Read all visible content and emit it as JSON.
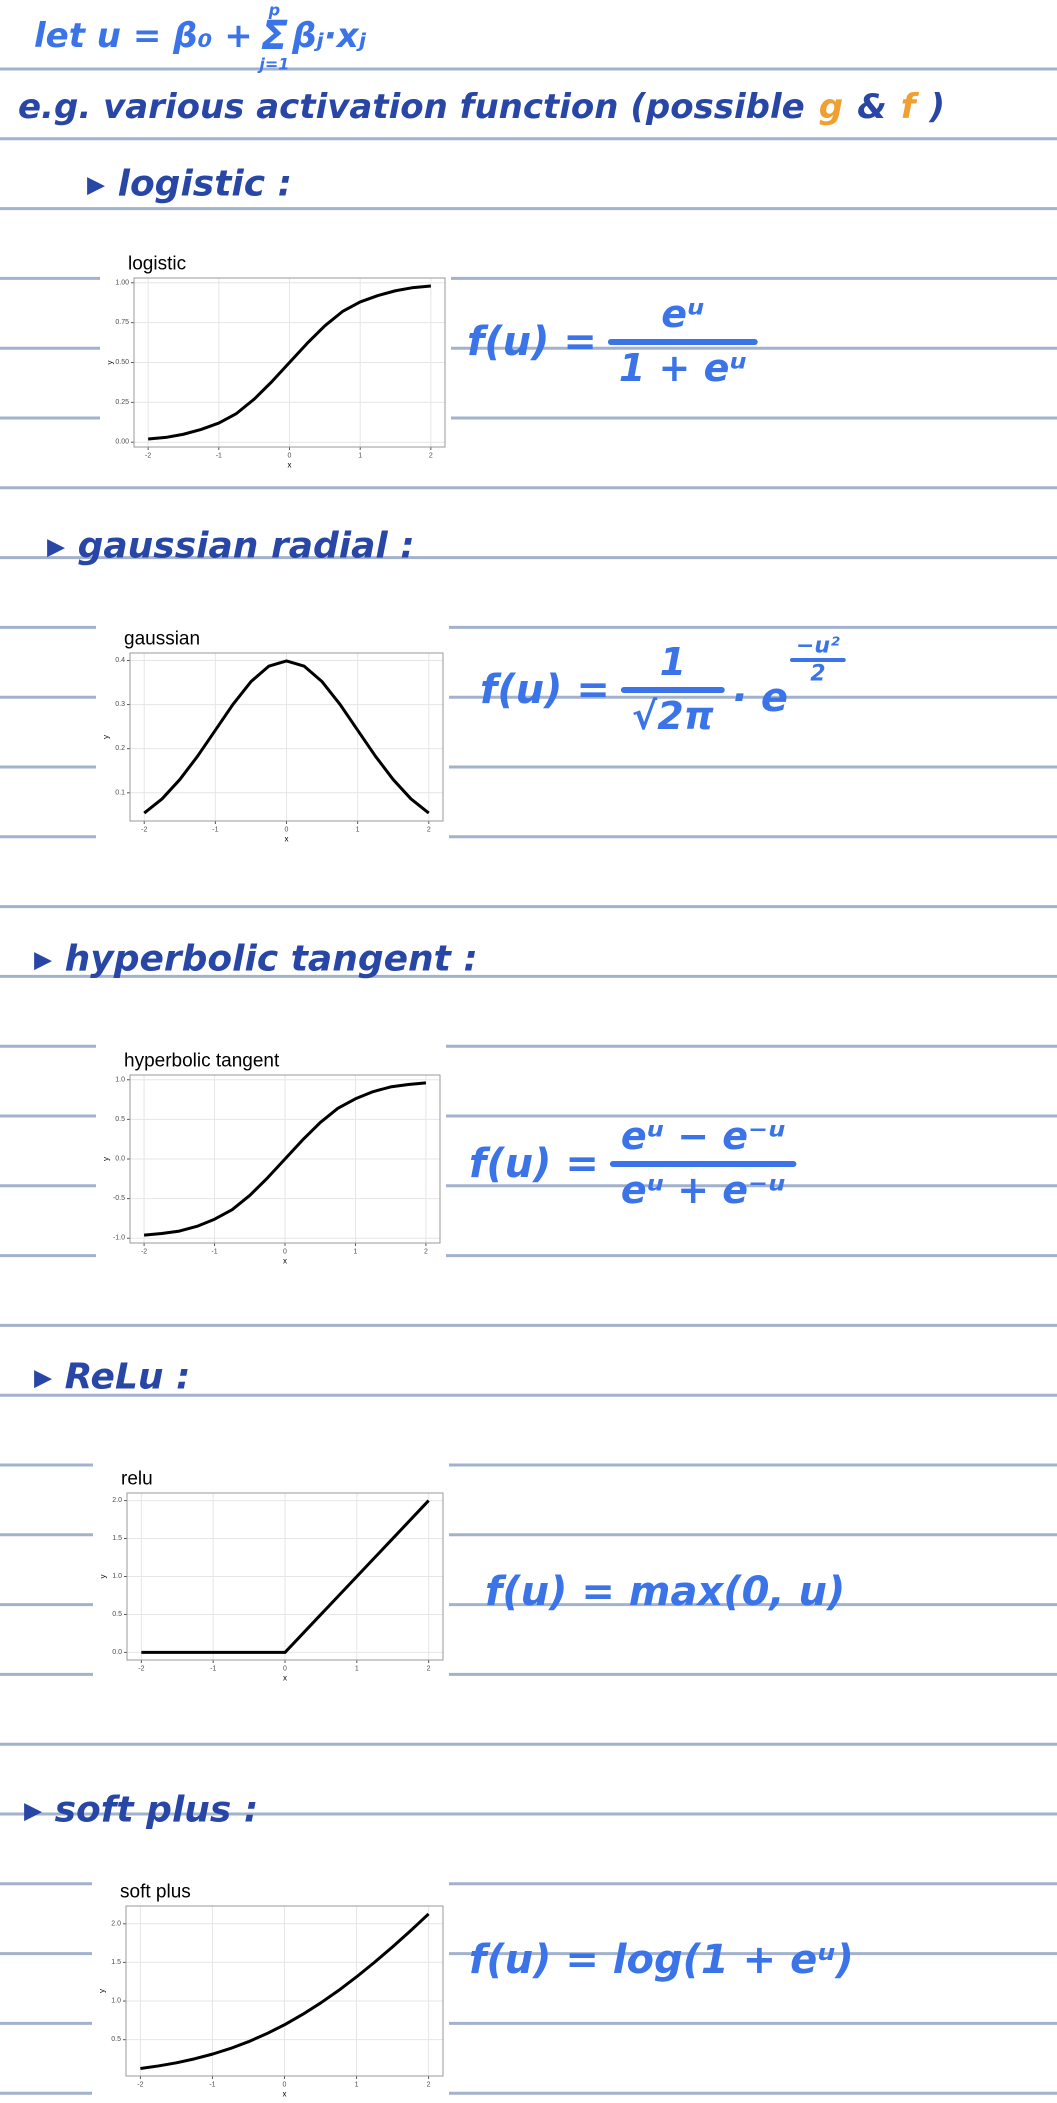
{
  "intro": {
    "lead": "let u = β₀ +",
    "sum": "Σ",
    "sum_upper": "p",
    "sum_lower": "j=1",
    "term": "βⱼ·xⱼ"
  },
  "subtitle": {
    "text": "e.g. various activation function (possible",
    "g": "g",
    "and": "&",
    "f": "f",
    "close": ")"
  },
  "sections": [
    {
      "heading": "▸ logistic :",
      "formula": {
        "lhs": "f(u) =",
        "numerator": "eᵘ",
        "denominator": "1 + eᵘ"
      }
    },
    {
      "heading": "▸ gaussian radial :",
      "formula": {
        "lhs": "f(u) =",
        "numerator": "1",
        "denominator": "√2π",
        "tail": "· e",
        "exp_numerator": "−u²",
        "exp_denominator": "2"
      }
    },
    {
      "heading": "▸ hyperbolic tangent :",
      "formula": {
        "lhs": "f(u) =",
        "numerator": "eᵘ − e⁻ᵘ",
        "denominator": "eᵘ + e⁻ᵘ"
      }
    },
    {
      "heading": "▸ ReLu :",
      "formula": {
        "text": "f(u) = max(0, u)"
      }
    },
    {
      "heading": "▸ soft plus :",
      "formula": {
        "text": "f(u) = log(1 + eᵘ)"
      }
    }
  ],
  "chart_data": [
    {
      "type": "line",
      "title": "logistic",
      "x_label": "x",
      "y_label": "y",
      "color": "#000000",
      "grid": true,
      "x": [
        -2,
        -1.75,
        -1.5,
        -1.25,
        -1,
        -0.75,
        -0.5,
        -0.25,
        0,
        0.25,
        0.5,
        0.75,
        1,
        1.25,
        1.5,
        1.75,
        2
      ],
      "values": [
        0.02,
        0.03,
        0.05,
        0.08,
        0.12,
        0.18,
        0.27,
        0.38,
        0.5,
        0.62,
        0.73,
        0.82,
        0.88,
        0.92,
        0.95,
        0.97,
        0.98
      ],
      "xlim": [
        -2.2,
        2.2
      ],
      "ylim": [
        -0.03,
        1.03
      ],
      "xticks": [
        -2,
        -1,
        0,
        1,
        2
      ],
      "yticks": [
        {
          "value": 0,
          "label": "0.00"
        },
        {
          "value": 0.25,
          "label": "0.25"
        },
        {
          "value": 0.5,
          "label": "0.50"
        },
        {
          "value": 0.75,
          "label": "0.75"
        },
        {
          "value": 1,
          "label": "1.00"
        }
      ]
    },
    {
      "type": "line",
      "title": "gaussian",
      "x_label": "x",
      "y_label": "y",
      "color": "#000000",
      "grid": true,
      "x": [
        -2,
        -1.75,
        -1.5,
        -1.25,
        -1,
        -0.75,
        -0.5,
        -0.25,
        0,
        0.25,
        0.5,
        0.75,
        1,
        1.25,
        1.5,
        1.75,
        2
      ],
      "values": [
        0.054,
        0.086,
        0.13,
        0.183,
        0.242,
        0.301,
        0.352,
        0.387,
        0.399,
        0.387,
        0.352,
        0.301,
        0.242,
        0.183,
        0.13,
        0.086,
        0.054
      ],
      "xlim": [
        -2.2,
        2.2
      ],
      "ylim": [
        0.036,
        0.417
      ],
      "xticks": [
        -2,
        -1,
        0,
        1,
        2
      ],
      "yticks": [
        0.1,
        0.2,
        0.3,
        0.4
      ]
    },
    {
      "type": "line",
      "title": "hyperbolic tangent",
      "x_label": "x",
      "y_label": "y",
      "color": "#000000",
      "grid": true,
      "x": [
        -2,
        -1.75,
        -1.5,
        -1.25,
        -1,
        -0.75,
        -0.5,
        -0.25,
        0,
        0.25,
        0.5,
        0.75,
        1,
        1.25,
        1.5,
        1.75,
        2
      ],
      "values": [
        -0.96,
        -0.94,
        -0.91,
        -0.85,
        -0.76,
        -0.64,
        -0.46,
        -0.24,
        0,
        0.24,
        0.46,
        0.64,
        0.76,
        0.85,
        0.91,
        0.94,
        0.96
      ],
      "xlim": [
        -2.2,
        2.2
      ],
      "ylim": [
        -1.06,
        1.06
      ],
      "xticks": [
        -2,
        -1,
        0,
        1,
        2
      ],
      "yticks": [
        {
          "value": -1,
          "label": "-1.0"
        },
        {
          "value": -0.5,
          "label": "-0.5"
        },
        {
          "value": 0,
          "label": "0.0"
        },
        {
          "value": 0.5,
          "label": "0.5"
        },
        {
          "value": 1,
          "label": "1.0"
        }
      ]
    },
    {
      "type": "line",
      "title": "relu",
      "x_label": "x",
      "y_label": "y",
      "color": "#000000",
      "grid": true,
      "x": [
        -2,
        -1.75,
        -1.5,
        -1.25,
        -1,
        -0.75,
        -0.5,
        -0.25,
        0,
        0.25,
        0.5,
        0.75,
        1,
        1.25,
        1.5,
        1.75,
        2
      ],
      "values": [
        0,
        0,
        0,
        0,
        0,
        0,
        0,
        0,
        0,
        0.25,
        0.5,
        0.75,
        1,
        1.25,
        1.5,
        1.75,
        2
      ],
      "xlim": [
        -2.2,
        2.2
      ],
      "ylim": [
        -0.1,
        2.1
      ],
      "xticks": [
        -2,
        -1,
        0,
        1,
        2
      ],
      "yticks": [
        {
          "value": 0,
          "label": "0.0"
        },
        {
          "value": 0.5,
          "label": "0.5"
        },
        {
          "value": 1,
          "label": "1.0"
        },
        {
          "value": 1.5,
          "label": "1.5"
        },
        {
          "value": 2,
          "label": "2.0"
        }
      ]
    },
    {
      "type": "line",
      "title": "soft plus",
      "x_label": "x",
      "y_label": "y",
      "color": "#000000",
      "grid": true,
      "x": [
        -2,
        -1.75,
        -1.5,
        -1.25,
        -1,
        -0.75,
        -0.5,
        -0.25,
        0,
        0.25,
        0.5,
        0.75,
        1,
        1.25,
        1.5,
        1.75,
        2
      ],
      "values": [
        0.127,
        0.16,
        0.201,
        0.252,
        0.313,
        0.386,
        0.474,
        0.576,
        0.693,
        0.826,
        0.974,
        1.136,
        1.313,
        1.502,
        1.701,
        1.91,
        2.127
      ],
      "xlim": [
        -2.2,
        2.2
      ],
      "ylim": [
        0.03,
        2.23
      ],
      "xticks": [
        -2,
        -1,
        0,
        1,
        2
      ],
      "yticks": [
        {
          "value": 0.5,
          "label": "0.5"
        },
        {
          "value": 1,
          "label": "1.0"
        },
        {
          "value": 1.5,
          "label": "1.5"
        },
        {
          "value": 2,
          "label": "2.0"
        }
      ]
    }
  ]
}
